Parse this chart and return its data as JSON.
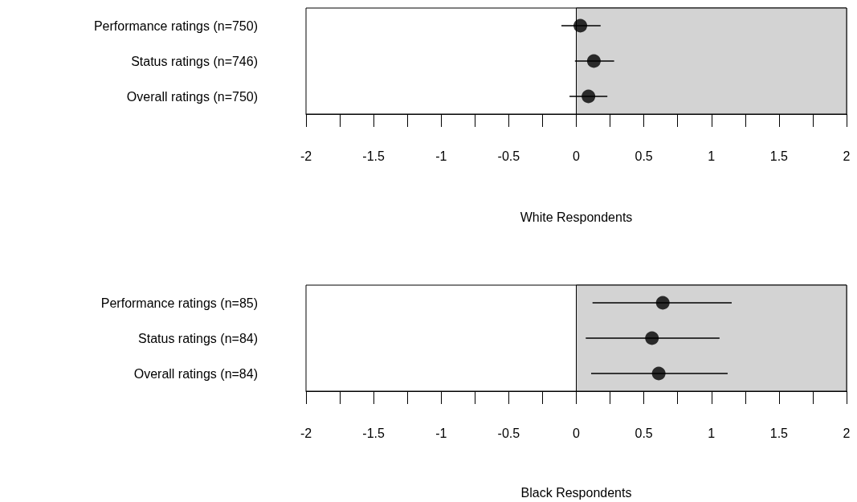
{
  "chart_data": [
    {
      "type": "scatter",
      "orientation": "horizontal",
      "xlabel": "White Respondents",
      "categories": [
        "Performance ratings (n=750)",
        "Status ratings (n=746)",
        "Overall ratings (n=750)"
      ],
      "values": [
        0.03,
        0.13,
        0.09
      ],
      "errors": [
        [
          -0.11,
          0.18
        ],
        [
          -0.01,
          0.28
        ],
        [
          -0.05,
          0.23
        ]
      ],
      "color": "#000000",
      "marker": "circle",
      "xlim": [
        -2,
        2
      ],
      "xticks": [
        -2,
        {
          "value": -1.75,
          "label": null
        },
        -1.5,
        {
          "value": -1.25,
          "label": null
        },
        -1,
        {
          "value": -0.75,
          "label": null
        },
        -0.5,
        {
          "value": -0.25,
          "label": null
        },
        0,
        {
          "value": 0.25,
          "label": null
        },
        0.5,
        {
          "value": 0.75,
          "label": null
        },
        1,
        {
          "value": 1.25,
          "label": null
        },
        1.5,
        {
          "value": 1.75,
          "label": null
        },
        2
      ],
      "bands": [
        {
          "axis": "x",
          "from": 0,
          "to": 2,
          "color": "#d3d3d3"
        }
      ],
      "grid": false
    },
    {
      "type": "scatter",
      "orientation": "horizontal",
      "xlabel": "Black Respondents",
      "categories": [
        "Performance ratings (n=85)",
        "Status ratings (n=84)",
        "Overall ratings (n=84)"
      ],
      "values": [
        0.64,
        0.56,
        0.61
      ],
      "errors": [
        [
          0.12,
          1.15
        ],
        [
          0.07,
          1.06
        ],
        [
          0.11,
          1.12
        ]
      ],
      "color": "#000000",
      "marker": "circle",
      "xlim": [
        -2,
        2
      ],
      "xticks": [
        -2,
        {
          "value": -1.75,
          "label": null
        },
        -1.5,
        {
          "value": -1.25,
          "label": null
        },
        -1,
        {
          "value": -0.75,
          "label": null
        },
        -0.5,
        {
          "value": -0.25,
          "label": null
        },
        0,
        {
          "value": 0.25,
          "label": null
        },
        0.5,
        {
          "value": 0.75,
          "label": null
        },
        1,
        {
          "value": 1.25,
          "label": null
        },
        1.5,
        {
          "value": 1.75,
          "label": null
        },
        2
      ],
      "bands": [
        {
          "axis": "x",
          "from": 0,
          "to": 2,
          "color": "#d3d3d3"
        }
      ],
      "grid": false
    }
  ]
}
